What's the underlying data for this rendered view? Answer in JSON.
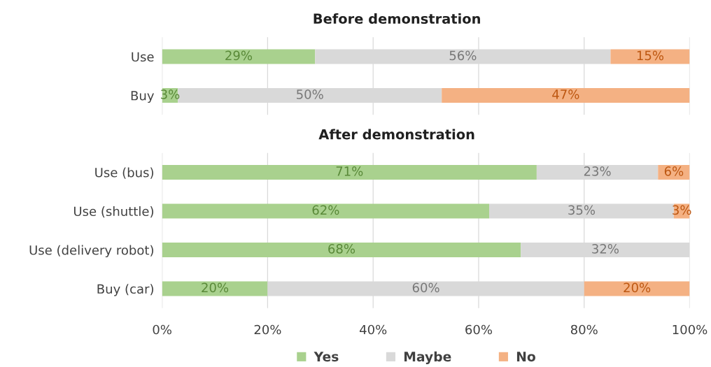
{
  "chart_data": [
    {
      "type": "bar",
      "orientation": "horizontal",
      "stacked": true,
      "title": "Before demonstration",
      "categories": [
        "Use",
        "Buy"
      ],
      "series": [
        {
          "color": "#a9d18e",
          "values": [
            29,
            3
          ],
          "value_labels": [
            "29%",
            "3%"
          ]
        },
        {
          "color": "#d9d9d9",
          "values": [
            56,
            50
          ],
          "value_labels": [
            "56%",
            "50%"
          ]
        },
        {
          "color": "#f4b183",
          "values": [
            15,
            47
          ],
          "value_labels": [
            "15%",
            "47%"
          ]
        }
      ],
      "xlim": [
        0,
        100
      ],
      "xticks": [
        {
          "value": 0,
          "label": null
        },
        {
          "value": 20,
          "label": null
        },
        {
          "value": 40,
          "label": null
        },
        {
          "value": 60,
          "label": null
        },
        {
          "value": 80,
          "label": null
        },
        {
          "value": 100,
          "label": null
        }
      ],
      "grid": "x",
      "tick_labels": "y"
    },
    {
      "type": "bar",
      "orientation": "horizontal",
      "stacked": true,
      "title": "After demonstration",
      "categories": [
        "Use (bus)",
        "Use (shuttle)",
        "Use (delivery robot)",
        "Buy (car)"
      ],
      "series": [
        {
          "name": "Yes",
          "color": "#a9d18e",
          "values": [
            71,
            62,
            68,
            20
          ],
          "value_labels": [
            "71%",
            "62%",
            "68%",
            "20%"
          ]
        },
        {
          "name": "Maybe",
          "color": "#d9d9d9",
          "values": [
            23,
            35,
            32,
            60
          ],
          "value_labels": [
            "23%",
            "35%",
            "32%",
            "60%"
          ]
        },
        {
          "name": "No",
          "color": "#f4b183",
          "values": [
            6,
            3,
            null,
            20
          ],
          "value_labels": [
            "6%",
            "3%",
            null,
            "20%"
          ]
        }
      ],
      "xlim": [
        0,
        100
      ],
      "xticks": [
        {
          "value": 0,
          "label": "0%"
        },
        {
          "value": 20,
          "label": "20%"
        },
        {
          "value": 40,
          "label": "40%"
        },
        {
          "value": 60,
          "label": "60%"
        },
        {
          "value": 80,
          "label": "80%"
        },
        {
          "value": 100,
          "label": "100%"
        }
      ],
      "grid": "x",
      "legend": "bottom"
    }
  ]
}
